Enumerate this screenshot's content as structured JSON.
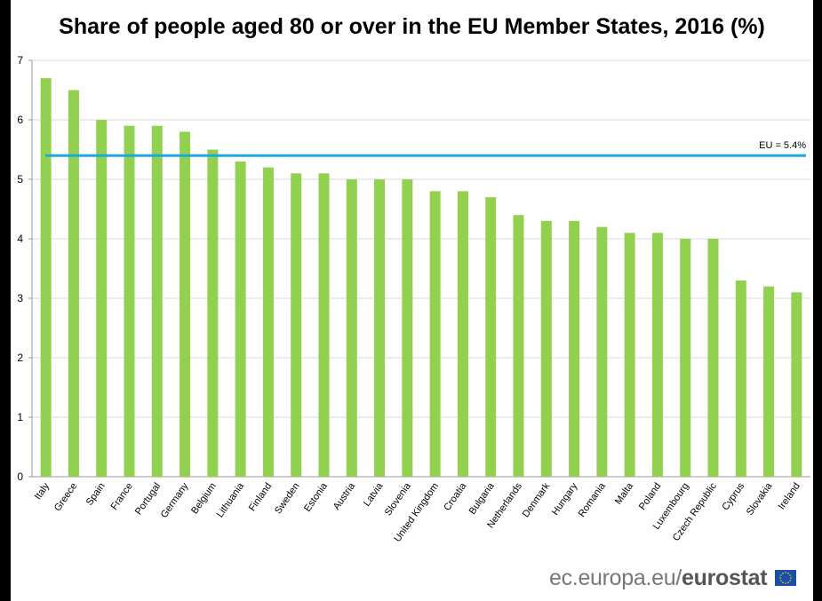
{
  "chart_data": {
    "type": "bar",
    "title": "Share of people aged 80 or over in the EU Member States, 2016 (%)",
    "categories": [
      "Italy",
      "Greece",
      "Spain",
      "France",
      "Portugal",
      "Germany",
      "Belgium",
      "Lithuania",
      "Finland",
      "Sweden",
      "Estonia",
      "Austria",
      "Latvia",
      "Slovenia",
      "United Kingdom",
      "Croatia",
      "Bulgaria",
      "Netherlands",
      "Denmark",
      "Hungary",
      "Romania",
      "Malta",
      "Poland",
      "Luxembourg",
      "Czech Republic",
      "Cyprus",
      "Slovakia",
      "Ireland"
    ],
    "values": [
      6.7,
      6.5,
      6.0,
      5.9,
      5.9,
      5.8,
      5.5,
      5.3,
      5.2,
      5.1,
      5.1,
      5.0,
      5.0,
      5.0,
      4.8,
      4.8,
      4.7,
      4.4,
      4.3,
      4.3,
      4.2,
      4.1,
      4.1,
      4.0,
      4.0,
      3.3,
      3.2,
      3.1
    ],
    "ylim": [
      0,
      7
    ],
    "yticks": [
      "0",
      "1",
      "2",
      "3",
      "4",
      "5",
      "6",
      "7"
    ],
    "grid": true,
    "reference_line": {
      "value": 5.4,
      "label": "EU = 5.4%",
      "color": "#1fa8df"
    },
    "bar_color": "#92d050"
  },
  "source": {
    "prefix": "ec.europa.eu/",
    "brand": "eurostat"
  }
}
